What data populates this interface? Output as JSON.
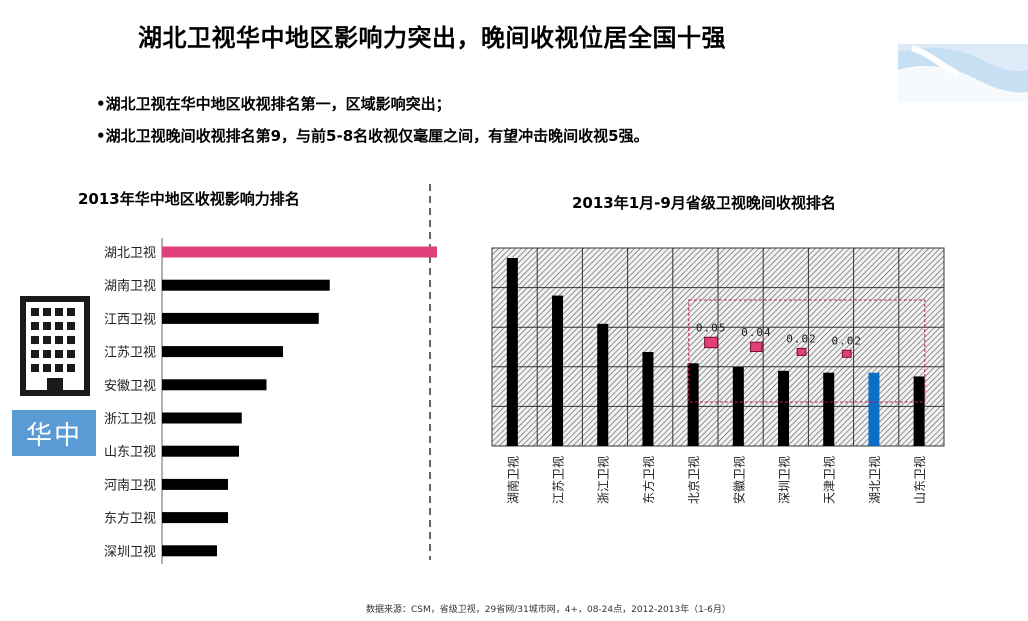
{
  "title": "湖北卫视华中地区影响力突出，晚间收视位居全国十强",
  "bullets": [
    "•湖北卫视在华中地区收视排名第一，区域影响突出；",
    "•湖北卫视晚间收视排名第9，与前5-8名收视仅毫厘之间，有望冲击晚间收视5强。"
  ],
  "region_label": "华中",
  "source": "数据来源：CSM，省级卫视，29省网/31城市网，4+，08-24点，2012-2013年（1-6月）",
  "colors": {
    "highlight_pink": "#e0407a",
    "highlight_blue": "#0b6fc4",
    "bar_black": "#000000",
    "region_blue": "#5b9bd5"
  },
  "chart_data": [
    {
      "type": "bar",
      "orientation": "horizontal",
      "title": "2013年华中地区收视影响力排名",
      "categories": [
        "湖北卫视",
        "湖南卫视",
        "江西卫视",
        "江苏卫视",
        "安徽卫视",
        "浙江卫视",
        "山东卫视",
        "河南卫视",
        "东方卫视",
        "深圳卫视"
      ],
      "values": [
        100,
        61,
        57,
        44,
        38,
        29,
        28,
        24,
        24,
        20
      ],
      "highlight": "湖北卫视",
      "xlim": [
        0,
        100
      ]
    },
    {
      "type": "bar",
      "title": "2013年1月-9月省级卫视晚间收视排名",
      "categories": [
        "湖南卫视",
        "江苏卫视",
        "浙江卫视",
        "东方卫视",
        "北京卫视",
        "安徽卫视",
        "深圳卫视",
        "天津卫视",
        "湖北卫视",
        "山东卫视"
      ],
      "values": [
        100,
        80,
        65,
        50,
        44,
        42,
        40,
        39,
        39,
        37
      ],
      "highlight": "湖北卫视",
      "ylim": [
        0,
        100
      ],
      "annotations": [
        {
          "between": [
            "北京卫视",
            "湖北卫视"
          ],
          "label": "0.05",
          "gap": 0.05
        },
        {
          "between": [
            "安徽卫视",
            "湖北卫视"
          ],
          "label": "0.04",
          "gap": 0.04
        },
        {
          "between": [
            "深圳卫视",
            "湖北卫视"
          ],
          "label": "0.02",
          "gap": 0.02
        },
        {
          "between": [
            "天津卫视",
            "湖北卫视"
          ],
          "label": "0.02",
          "gap": 0.02
        }
      ]
    }
  ]
}
